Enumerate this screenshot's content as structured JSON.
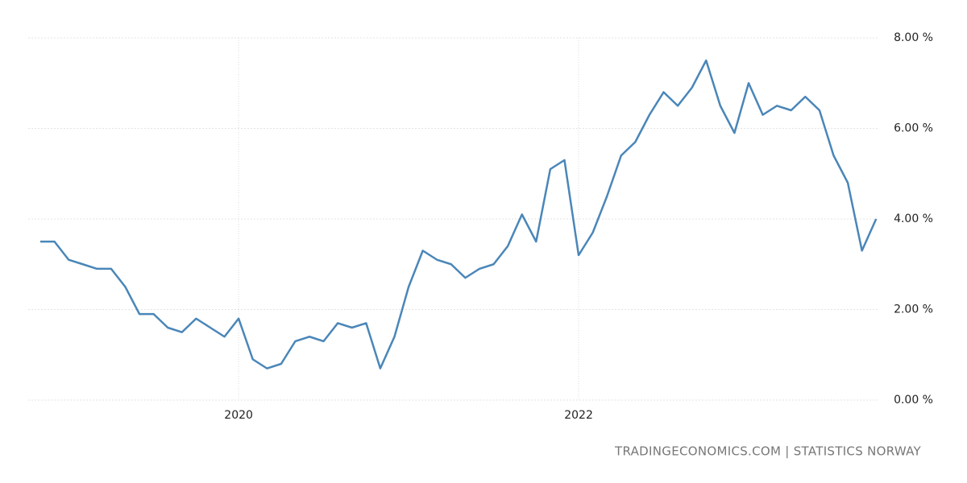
{
  "chart_data": {
    "type": "line",
    "source": "TRADINGECONOMICS.COM | STATISTICS NORWAY",
    "categories": [
      null,
      null,
      null,
      null,
      null,
      null,
      null,
      null,
      null,
      null,
      null,
      null,
      null,
      null,
      "2020",
      null,
      null,
      null,
      null,
      null,
      null,
      null,
      null,
      null,
      null,
      null,
      null,
      null,
      null,
      null,
      null,
      null,
      null,
      null,
      null,
      null,
      null,
      null,
      "2022",
      null,
      null,
      null,
      null,
      null,
      null,
      null,
      null,
      null,
      null,
      null,
      null,
      null,
      null,
      null,
      null,
      null,
      null,
      null,
      null,
      null
    ],
    "series": [
      {
        "color": "#4a86b8",
        "values": [
          3.5,
          3.5,
          3.1,
          3.0,
          2.9,
          2.9,
          2.5,
          1.9,
          1.9,
          1.6,
          1.5,
          1.8,
          1.6,
          1.4,
          1.8,
          0.9,
          0.7,
          0.8,
          1.3,
          1.4,
          1.3,
          1.7,
          1.6,
          1.7,
          0.7,
          1.4,
          2.5,
          3.3,
          3.1,
          3.0,
          2.7,
          2.9,
          3.0,
          3.4,
          4.1,
          3.5,
          5.1,
          5.3,
          3.2,
          3.7,
          4.5,
          5.4,
          5.7,
          6.3,
          6.8,
          6.5,
          6.9,
          7.5,
          6.5,
          5.9,
          7.0,
          6.3,
          6.5,
          6.4,
          6.7,
          6.4,
          5.4,
          4.8,
          3.3,
          4.0
        ]
      }
    ],
    "ylim": [
      0,
      8
    ],
    "yticks": [
      {
        "value": 0,
        "label": "0.00 %"
      },
      {
        "value": 2,
        "label": "2.00 %"
      },
      {
        "value": 4,
        "label": "4.00 %"
      },
      {
        "value": 6,
        "label": "6.00 %"
      },
      {
        "value": 8,
        "label": "8.00 %"
      }
    ],
    "grid": true
  }
}
